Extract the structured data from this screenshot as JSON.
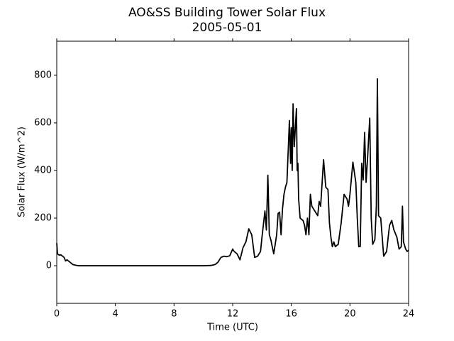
{
  "chart_data": {
    "type": "line",
    "title": "AO&SS Building Tower Solar Flux",
    "subtitle": "2005-05-01",
    "xlabel": "Time (UTC)",
    "ylabel": "Solar Flux (W/m^2)",
    "xlim": [
      0,
      24
    ],
    "ylim": [
      -158,
      943
    ],
    "xticks": [
      0,
      4,
      8,
      12,
      16,
      20,
      24
    ],
    "yticks": [
      0,
      200,
      400,
      600,
      800
    ],
    "grid": false,
    "x": [
      0,
      0.05,
      0.15,
      0.3,
      0.5,
      0.6,
      0.7,
      0.9,
      1.1,
      1.3,
      1.5,
      2,
      4,
      8,
      10,
      10.5,
      10.8,
      11,
      11.2,
      11.4,
      11.6,
      11.8,
      12,
      12.1,
      12.3,
      12.5,
      12.7,
      12.9,
      13.1,
      13.3,
      13.5,
      13.7,
      13.9,
      14.0,
      14.1,
      14.2,
      14.3,
      14.4,
      14.5,
      14.6,
      14.7,
      14.8,
      14.9,
      15.0,
      15.1,
      15.2,
      15.3,
      15.4,
      15.5,
      15.6,
      15.7,
      15.87,
      15.95,
      16.0,
      16.06,
      16.12,
      16.2,
      16.35,
      16.4,
      16.45,
      16.5,
      16.6,
      16.8,
      16.9,
      17.0,
      17.1,
      17.2,
      17.3,
      17.4,
      17.6,
      17.8,
      17.9,
      18.0,
      18.2,
      18.35,
      18.5,
      18.6,
      18.7,
      18.8,
      18.9,
      19.0,
      19.2,
      19.4,
      19.6,
      19.8,
      19.9,
      20.0,
      20.2,
      20.4,
      20.5,
      20.6,
      20.7,
      20.8,
      20.9,
      21.0,
      21.1,
      21.2,
      21.35,
      21.45,
      21.55,
      21.7,
      21.8,
      21.87,
      21.95,
      22.1,
      22.3,
      22.5,
      22.7,
      22.85,
      23.0,
      23.2,
      23.35,
      23.5,
      23.58,
      23.65,
      23.8,
      23.9,
      24
    ],
    "series": [
      {
        "name": "Solar Flux",
        "color": "#000000",
        "values": [
          95,
          50,
          45,
          45,
          35,
          20,
          25,
          15,
          5,
          2,
          0,
          0,
          0,
          0,
          0,
          1,
          5,
          15,
          35,
          40,
          38,
          42,
          70,
          60,
          50,
          25,
          75,
          100,
          155,
          130,
          35,
          40,
          60,
          120,
          175,
          230,
          150,
          380,
          130,
          110,
          80,
          50,
          90,
          130,
          220,
          225,
          130,
          240,
          300,
          330,
          350,
          610,
          430,
          580,
          400,
          680,
          500,
          660,
          400,
          430,
          280,
          200,
          190,
          170,
          130,
          200,
          130,
          300,
          250,
          230,
          210,
          270,
          250,
          445,
          330,
          320,
          180,
          120,
          80,
          100,
          80,
          90,
          180,
          300,
          280,
          250,
          300,
          435,
          350,
          200,
          80,
          80,
          430,
          360,
          560,
          350,
          450,
          620,
          200,
          90,
          110,
          250,
          785,
          210,
          200,
          40,
          60,
          170,
          190,
          150,
          120,
          70,
          80,
          250,
          100,
          70,
          60,
          65
        ]
      }
    ]
  }
}
